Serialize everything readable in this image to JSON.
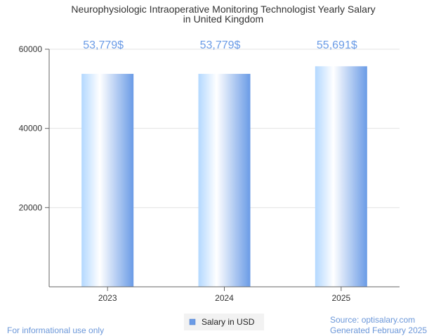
{
  "chart_data": {
    "type": "bar",
    "title_line1": "Neurophysiologic Intraoperative Monitoring Technologist Yearly Salary",
    "title_line2": "in United Kingdom",
    "categories": [
      "2023",
      "2024",
      "2025"
    ],
    "values": [
      53779,
      53779,
      55691
    ],
    "value_labels": [
      "53,779$",
      "53,779$",
      "55,691$"
    ],
    "series": [
      {
        "name": "Salary in USD",
        "values": [
          53779,
          53779,
          55691
        ]
      }
    ],
    "ylim": [
      0,
      60000
    ],
    "yticks": [
      "20000",
      "40000",
      "60000"
    ],
    "ytick_values": [
      20000,
      40000,
      60000
    ],
    "grid": true,
    "legend_placement": "bottom-center",
    "bar_color": "#6a9be6",
    "label_color": "#6a9be6"
  },
  "footer": {
    "left": "For informational use only",
    "source": "Source: optisalary.com",
    "generated": "Generated February 2025"
  }
}
